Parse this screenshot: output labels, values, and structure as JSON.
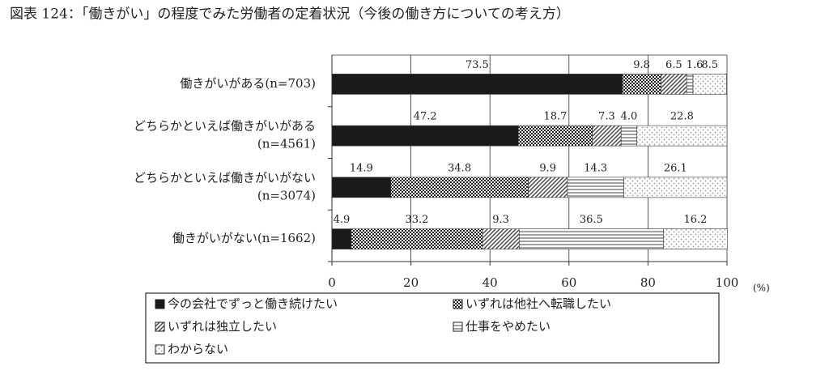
{
  "chart_data": {
    "type": "stacked-bar-horizontal",
    "title": "図表 124：「働きがい」の程度でみた労働者の定着状況（今後の働き方についての考え方）",
    "categories": [
      [
        "働きがいがある(n=703)"
      ],
      [
        "どちらかといえば働きがいがある",
        "(n=4561)"
      ],
      [
        "どちらかといえば働きがいがない",
        "(n=3074)"
      ],
      [
        "働きがいがない(n=1662)"
      ]
    ],
    "series": [
      {
        "name": "今の会社でずっと働き続けたい",
        "color": "#1a1a1a",
        "pattern": "solid",
        "values": [
          73.5,
          47.2,
          14.9,
          4.9
        ]
      },
      {
        "name": "いずれは他社へ転職したい",
        "color": "#333333",
        "pattern": "dots-dense",
        "values": [
          9.8,
          18.7,
          34.8,
          33.2
        ]
      },
      {
        "name": "いずれは独立したい",
        "color": "#444444",
        "pattern": "hatch",
        "values": [
          6.5,
          7.3,
          9.9,
          9.3
        ]
      },
      {
        "name": "仕事をやめたい",
        "color": "#444444",
        "pattern": "hlines",
        "values": [
          1.6,
          4.0,
          14.3,
          36.5
        ],
        "value_labels": [
          "1.6",
          "4.0",
          "14.3",
          "36.5"
        ]
      },
      {
        "name": "わからない",
        "color": "#888888",
        "pattern": "dots-light",
        "values": [
          8.5,
          22.8,
          26.1,
          16.2
        ]
      }
    ],
    "xlim": [
      0,
      100
    ],
    "xticks": [
      0,
      20,
      40,
      60,
      80,
      100
    ],
    "x_unit": "(%)",
    "grid": true
  }
}
